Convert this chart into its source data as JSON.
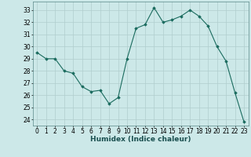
{
  "x": [
    0,
    1,
    2,
    3,
    4,
    5,
    6,
    7,
    8,
    9,
    10,
    11,
    12,
    13,
    14,
    15,
    16,
    17,
    18,
    19,
    20,
    21,
    22,
    23
  ],
  "y": [
    29.5,
    29.0,
    29.0,
    28.0,
    27.8,
    26.7,
    26.3,
    26.4,
    25.3,
    25.8,
    29.0,
    31.5,
    31.8,
    33.2,
    32.0,
    32.2,
    32.5,
    33.0,
    32.5,
    31.7,
    30.0,
    28.8,
    26.2,
    23.8
  ],
  "line_color": "#1a6b5e",
  "marker": "D",
  "marker_size": 1.8,
  "background_color": "#cce8e8",
  "grid_color": "#b0cece",
  "xlabel": "Humidex (Indice chaleur)",
  "ylim_min": 23.5,
  "ylim_max": 33.7,
  "yticks": [
    24,
    25,
    26,
    27,
    28,
    29,
    30,
    31,
    32,
    33
  ],
  "xticks": [
    0,
    1,
    2,
    3,
    4,
    5,
    6,
    7,
    8,
    9,
    10,
    11,
    12,
    13,
    14,
    15,
    16,
    17,
    18,
    19,
    20,
    21,
    22,
    23
  ],
  "label_fontsize": 6.5,
  "tick_fontsize": 5.5,
  "linewidth": 0.8
}
